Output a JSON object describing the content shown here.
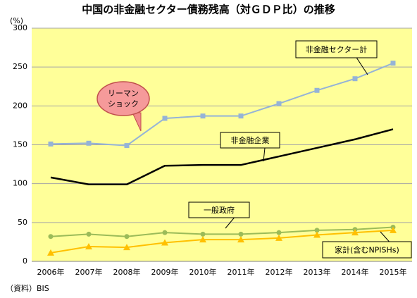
{
  "chart_data": {
    "type": "line",
    "title": "中国の非金融セクター債務残高（対ＧＤＰ比）の推移",
    "y_unit": "(%)",
    "source": "（資料）BIS",
    "annotation": [
      "リーマン",
      "ショック"
    ],
    "categories": [
      "2006年",
      "2007年",
      "2008年",
      "2009年",
      "2010年",
      "2011年",
      "2012年",
      "2013年",
      "2014年",
      "2015年"
    ],
    "series": [
      {
        "name": "非金融セクター計",
        "color": "#95b3d7",
        "marker": "square",
        "values": [
          151,
          152,
          149,
          184,
          187,
          187,
          203,
          220,
          235,
          255
        ]
      },
      {
        "name": "非金融企業",
        "color": "#000000",
        "marker": "none",
        "values": [
          108,
          99,
          99,
          123,
          124,
          124,
          135,
          146,
          157,
          170
        ]
      },
      {
        "name": "一般政府",
        "color": "#9bbb59",
        "marker": "circle",
        "values": [
          32,
          35,
          32,
          37,
          35,
          35,
          37,
          40,
          41,
          44
        ]
      },
      {
        "name": "家計(含むNPISHs)",
        "color": "#ffc000",
        "marker": "triangle",
        "values": [
          11,
          19,
          18,
          24,
          28,
          28,
          30,
          34,
          37,
          40
        ]
      }
    ],
    "ylim": [
      0,
      300
    ],
    "yticks": [
      0,
      50,
      100,
      150,
      200,
      250,
      300
    ],
    "grid": true
  }
}
